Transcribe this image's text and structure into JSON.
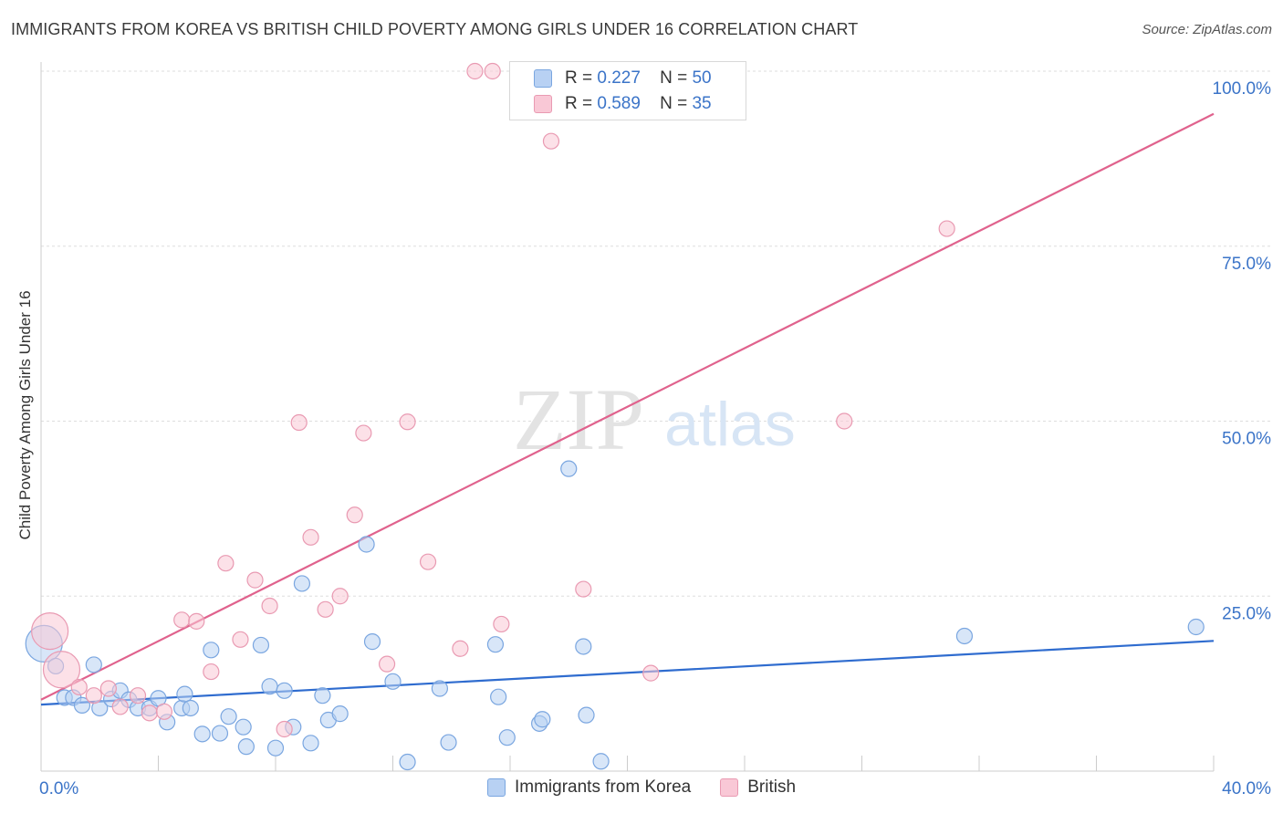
{
  "title": "IMMIGRANTS FROM KOREA VS BRITISH CHILD POVERTY AMONG GIRLS UNDER 16 CORRELATION CHART",
  "source": "Source: ZipAtlas.com",
  "watermark": {
    "zip": "ZIP",
    "atlas": "atlas"
  },
  "legend_stats": [
    {
      "r_label": "R =",
      "r_value": "0.227",
      "n_label": "N =",
      "n_value": "50",
      "color": "#b8d1f3",
      "border": "#7aa6e0"
    },
    {
      "r_label": "R =",
      "r_value": "0.589",
      "n_label": "N =",
      "n_value": "35",
      "color": "#f9c8d6",
      "border": "#e99ab2"
    }
  ],
  "legend_bottom": [
    {
      "label": "Immigrants from Korea",
      "color": "#b8d1f3",
      "border": "#7aa6e0"
    },
    {
      "label": "British",
      "color": "#f9c8d6",
      "border": "#e99ab2"
    }
  ],
  "chart_data": {
    "type": "scatter",
    "title": "IMMIGRANTS FROM KOREA VS BRITISH CHILD POVERTY AMONG GIRLS UNDER 16 CORRELATION CHART",
    "xlabel": "",
    "ylabel": "Child Poverty Among Girls Under 16",
    "xlim": [
      0,
      40
    ],
    "ylim": [
      0,
      100
    ],
    "x_tick_labels": [
      {
        "value": 0,
        "label": "0.0%"
      },
      {
        "value": 40,
        "label": "40.0%"
      }
    ],
    "y_tick_labels": [
      {
        "value": 25,
        "label": "25.0%"
      },
      {
        "value": 50,
        "label": "50.0%"
      },
      {
        "value": 75,
        "label": "75.0%"
      },
      {
        "value": 100,
        "label": "100.0%"
      }
    ],
    "grid": true,
    "legend_position": "top-center",
    "series": [
      {
        "name": "Immigrants from Korea",
        "color": "#7aa6e0",
        "fill": "#b8d1f3",
        "line_color": "#2f6ccf",
        "trend": {
          "x": [
            0,
            40
          ],
          "y": [
            9.5,
            18.6
          ]
        },
        "points": [
          {
            "x": 0.1,
            "y": 18.2,
            "big": true
          },
          {
            "x": 0.5,
            "y": 15.0
          },
          {
            "x": 0.8,
            "y": 10.5
          },
          {
            "x": 1.1,
            "y": 10.5
          },
          {
            "x": 1.4,
            "y": 9.4
          },
          {
            "x": 1.8,
            "y": 15.2
          },
          {
            "x": 2.0,
            "y": 9.0
          },
          {
            "x": 2.4,
            "y": 10.3
          },
          {
            "x": 2.7,
            "y": 11.5
          },
          {
            "x": 3.0,
            "y": 10.2
          },
          {
            "x": 3.3,
            "y": 9.0
          },
          {
            "x": 3.7,
            "y": 9.0
          },
          {
            "x": 4.0,
            "y": 10.4
          },
          {
            "x": 4.3,
            "y": 7.0
          },
          {
            "x": 4.8,
            "y": 9.0
          },
          {
            "x": 4.9,
            "y": 11.0
          },
          {
            "x": 5.1,
            "y": 9.0
          },
          {
            "x": 5.5,
            "y": 5.3
          },
          {
            "x": 5.8,
            "y": 17.3
          },
          {
            "x": 6.1,
            "y": 5.4
          },
          {
            "x": 6.4,
            "y": 7.8
          },
          {
            "x": 6.9,
            "y": 6.3
          },
          {
            "x": 7.0,
            "y": 3.5
          },
          {
            "x": 7.5,
            "y": 18.0
          },
          {
            "x": 7.8,
            "y": 12.1
          },
          {
            "x": 8.0,
            "y": 3.3
          },
          {
            "x": 8.3,
            "y": 11.5
          },
          {
            "x": 8.6,
            "y": 6.3
          },
          {
            "x": 8.9,
            "y": 26.8
          },
          {
            "x": 9.2,
            "y": 4.0
          },
          {
            "x": 9.6,
            "y": 10.8
          },
          {
            "x": 9.8,
            "y": 7.3
          },
          {
            "x": 10.2,
            "y": 8.2
          },
          {
            "x": 11.1,
            "y": 32.4
          },
          {
            "x": 11.3,
            "y": 18.5
          },
          {
            "x": 12.0,
            "y": 12.8
          },
          {
            "x": 12.5,
            "y": 1.3
          },
          {
            "x": 13.6,
            "y": 11.8
          },
          {
            "x": 13.9,
            "y": 4.1
          },
          {
            "x": 15.5,
            "y": 18.1
          },
          {
            "x": 15.6,
            "y": 10.6
          },
          {
            "x": 15.9,
            "y": 4.8
          },
          {
            "x": 17.0,
            "y": 6.8
          },
          {
            "x": 17.1,
            "y": 7.4
          },
          {
            "x": 18.0,
            "y": 43.2
          },
          {
            "x": 18.5,
            "y": 17.8
          },
          {
            "x": 18.6,
            "y": 8.0
          },
          {
            "x": 19.1,
            "y": 1.4
          },
          {
            "x": 31.5,
            "y": 19.3
          },
          {
            "x": 39.4,
            "y": 20.6
          }
        ]
      },
      {
        "name": "British",
        "color": "#e99ab2",
        "fill": "#f9c8d6",
        "line_color": "#e0628d",
        "trend": {
          "x": [
            0,
            40
          ],
          "y": [
            10.2,
            93.9
          ]
        },
        "points": [
          {
            "x": 0.3,
            "y": 20.0,
            "big": true
          },
          {
            "x": 0.7,
            "y": 14.5,
            "big": true
          },
          {
            "x": 1.3,
            "y": 12.0
          },
          {
            "x": 1.8,
            "y": 10.8
          },
          {
            "x": 2.3,
            "y": 11.8
          },
          {
            "x": 2.7,
            "y": 9.2
          },
          {
            "x": 3.3,
            "y": 10.8
          },
          {
            "x": 3.7,
            "y": 8.3
          },
          {
            "x": 4.2,
            "y": 8.5
          },
          {
            "x": 4.8,
            "y": 21.6
          },
          {
            "x": 5.3,
            "y": 21.4
          },
          {
            "x": 5.8,
            "y": 14.2
          },
          {
            "x": 6.3,
            "y": 29.7
          },
          {
            "x": 6.8,
            "y": 18.8
          },
          {
            "x": 7.3,
            "y": 27.3
          },
          {
            "x": 7.8,
            "y": 23.6
          },
          {
            "x": 8.3,
            "y": 6.0
          },
          {
            "x": 8.8,
            "y": 49.8
          },
          {
            "x": 9.2,
            "y": 33.4
          },
          {
            "x": 9.7,
            "y": 23.1
          },
          {
            "x": 10.2,
            "y": 25.0
          },
          {
            "x": 10.7,
            "y": 36.6
          },
          {
            "x": 11.0,
            "y": 48.3
          },
          {
            "x": 11.8,
            "y": 15.3
          },
          {
            "x": 12.5,
            "y": 49.9
          },
          {
            "x": 13.2,
            "y": 29.9
          },
          {
            "x": 14.3,
            "y": 17.5
          },
          {
            "x": 14.8,
            "y": 100.0
          },
          {
            "x": 15.4,
            "y": 100.0
          },
          {
            "x": 15.7,
            "y": 21.0
          },
          {
            "x": 17.4,
            "y": 90.0
          },
          {
            "x": 18.5,
            "y": 26.0
          },
          {
            "x": 20.8,
            "y": 14.0
          },
          {
            "x": 27.4,
            "y": 50.0
          },
          {
            "x": 30.9,
            "y": 77.5
          }
        ]
      }
    ]
  }
}
